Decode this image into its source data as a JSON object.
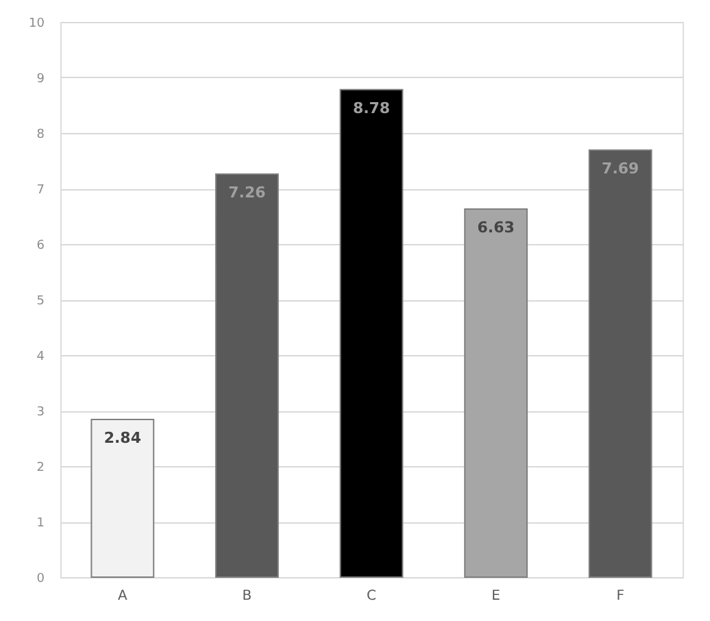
{
  "chart_data": {
    "type": "bar",
    "categories": [
      "A",
      "B",
      "C",
      "E",
      "F"
    ],
    "values": [
      2.84,
      7.26,
      8.78,
      6.63,
      7.69
    ],
    "colors": [
      "#f2f2f2",
      "#595959",
      "#000000",
      "#a6a6a6",
      "#595959"
    ],
    "ylim": [
      0,
      10
    ],
    "yticks": [
      0,
      1,
      2,
      3,
      4,
      5,
      6,
      7,
      8,
      9,
      10
    ],
    "grid": "y",
    "data_labels": true
  }
}
